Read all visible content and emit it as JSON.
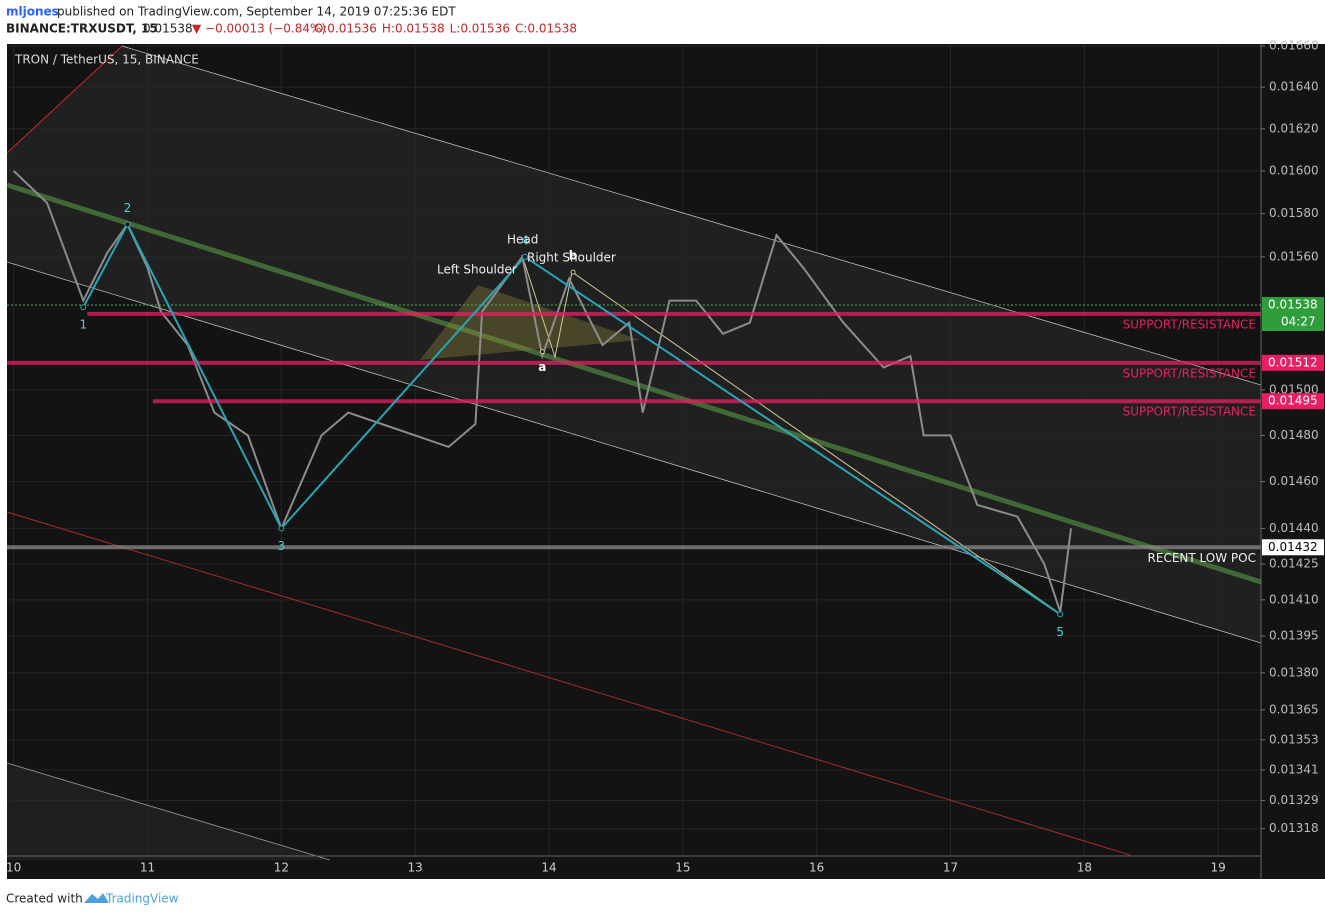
{
  "chart_data": {
    "type": "line",
    "publisher": "mljones",
    "published_text": "published on TradingView.com, September 14, 2019 07:25:36 EDT",
    "symbol": "BINANCE:TRXUSDT, 15",
    "last": "0.01538",
    "change": "▼ −0.00013 (−0.84%)",
    "ohlc": [
      "O:0.01536",
      "H:0.01538",
      "L:0.01536",
      "C:0.01538"
    ],
    "title": "TRON / TetherUS, 15, BINANCE",
    "x": [
      10.0,
      10.25,
      10.52,
      10.7,
      10.85,
      11.0,
      11.1,
      11.3,
      11.5,
      11.75,
      12.0,
      12.3,
      12.5,
      12.75,
      13.0,
      13.25,
      13.45,
      13.5,
      13.8,
      13.95,
      14.15,
      14.4,
      14.6,
      14.7,
      14.9,
      15.1,
      15.3,
      15.5,
      15.7,
      15.9,
      16.2,
      16.5,
      16.7,
      16.8,
      17.0,
      17.2,
      17.5,
      17.7,
      17.82,
      17.9
    ],
    "values": [
      0.016,
      0.01585,
      0.0154,
      0.01562,
      0.01575,
      0.01555,
      0.01535,
      0.0152,
      0.0149,
      0.0148,
      0.0144,
      0.0148,
      0.0149,
      0.01485,
      0.0148,
      0.01475,
      0.01485,
      0.01535,
      0.0156,
      0.01515,
      0.0155,
      0.0152,
      0.0153,
      0.0149,
      0.0154,
      0.0154,
      0.01525,
      0.0153,
      0.0157,
      0.01555,
      0.0153,
      0.0151,
      0.01515,
      0.0148,
      0.0148,
      0.0145,
      0.01445,
      0.01425,
      0.01405,
      0.0144
    ],
    "color": "#8c8c8c",
    "xlim": [
      9.95,
      19.32
    ],
    "xticks": [
      10,
      11,
      12,
      13,
      14,
      15,
      16,
      17,
      18,
      19
    ],
    "ylim": [
      0.01299,
      0.01661
    ],
    "log_scale": true,
    "yticks": [
      {
        "value": 0.0166,
        "label": "0.01660"
      },
      {
        "value": 0.0164,
        "label": "0.01640"
      },
      {
        "value": 0.0162,
        "label": "0.01620"
      },
      {
        "value": 0.016,
        "label": "0.01600"
      },
      {
        "value": 0.0158,
        "label": "0.01580"
      },
      {
        "value": 0.0156,
        "label": "0.01560"
      },
      {
        "value": 0.015,
        "label": "0.01500"
      },
      {
        "value": 0.0148,
        "label": "0.01480"
      },
      {
        "value": 0.0146,
        "label": "0.01460"
      },
      {
        "value": 0.0144,
        "label": "0.01440"
      },
      0.01425,
      {
        "value": 0.0141,
        "label": "0.01410"
      },
      0.01395,
      {
        "value": 0.0138,
        "label": "0.01380"
      },
      0.01365,
      0.01353,
      0.01341,
      0.01329,
      0.01318
    ],
    "grid": true,
    "current_price": 0.01538,
    "countdown": "04:27",
    "levels": [
      {
        "value": 0.01534,
        "from": 10.55,
        "text": "SUPPORT/RESISTANCE",
        "color": "#e91e63",
        "tag_color": "#e91e63"
      },
      {
        "value": 0.01512,
        "from": 9.95,
        "text": "SUPPORT/RESISTANCE",
        "color": "#e91e63",
        "tag_color": "#e91e63"
      },
      {
        "value": 0.01495,
        "from": 11.04,
        "text": "SUPPORT/RESISTANCE",
        "color": "#e91e63",
        "tag_color": "#e91e63"
      },
      {
        "value": 0.01432,
        "from": 9.95,
        "text": "RECENT LOW POC",
        "color": "#8a8a8a",
        "tag_color": "#ffffff"
      }
    ],
    "waves": [
      {
        "label": "1",
        "x": 10.52,
        "y": 0.01537
      },
      {
        "label": "2",
        "x": 10.85,
        "y": 0.01575
      },
      {
        "label": "3",
        "x": 12.0,
        "y": 0.0144
      },
      {
        "label": "4",
        "x": 13.82,
        "y": 0.0156
      },
      {
        "label": "5",
        "x": 17.82,
        "y": 0.01404
      }
    ],
    "corrective": [
      {
        "label": "a",
        "x": 13.95,
        "y": 0.01517
      },
      {
        "label": "b",
        "x": 14.18,
        "y": 0.01553
      }
    ],
    "pattern_labels": [
      "Left Shoulder",
      "Head",
      "Right Shoulder"
    ],
    "footer": "Created with",
    "brand": "TradingView"
  }
}
